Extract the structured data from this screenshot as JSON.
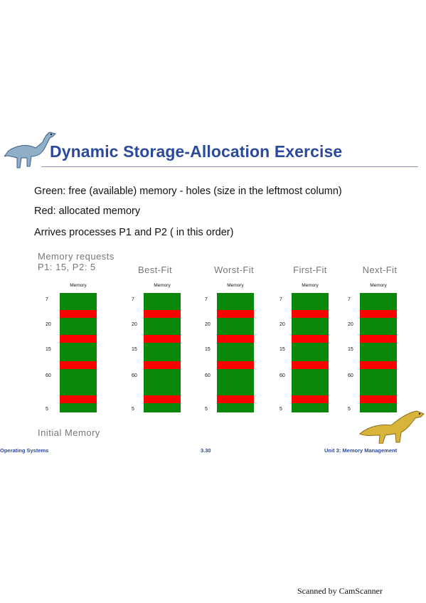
{
  "slide": {
    "title": "Dynamic Storage-Allocation Exercise",
    "bullets": [
      "Green: free (available) memory - holes (size in the leftmost column)",
      "Red:  allocated memory",
      "Arrives processes P1 and P2 ( in this order)"
    ],
    "requests": {
      "line1": "Memory requests",
      "line2": "P1: 15, P2: 5"
    },
    "columns": [
      {
        "title": "",
        "memory_label": "Memory"
      },
      {
        "title": "Best-Fit",
        "memory_label": "Memory"
      },
      {
        "title": "Worst-Fit",
        "memory_label": "Memory"
      },
      {
        "title": "First-Fit",
        "memory_label": "Memory"
      },
      {
        "title": "Next-Fit",
        "memory_label": "Memory"
      }
    ],
    "hole_sizes": [
      "7",
      "20",
      "15",
      "60",
      "5"
    ],
    "initial_label": "Initial Memory",
    "footer": {
      "left": "Operating Systems",
      "center": "3.30",
      "right": "Unit 3: Memory Management"
    },
    "colors": {
      "free": "#0a880a",
      "allocated": "#ff0000",
      "title": "#2b4a9c"
    }
  },
  "watermark": "Scanned by CamScanner"
}
